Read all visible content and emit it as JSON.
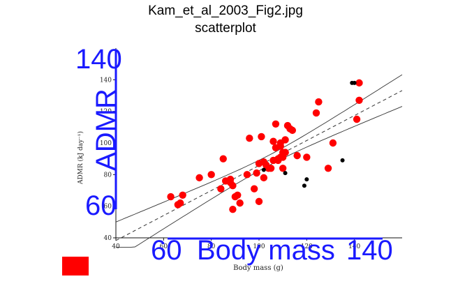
{
  "title": "Kam_et_al_2003_Fig2.jpg",
  "subtitle": "scatterplot",
  "colors": {
    "overlay": "#1a1aff",
    "marker_red": "#ff0000",
    "marker_black": "#000000",
    "swatch": "#ff0000",
    "axes": "#111111"
  },
  "chart_data": {
    "type": "scatter",
    "xlabel": "Body mass (g)",
    "ylabel": "ADMR (kJ day⁻¹)",
    "xlim": [
      40,
      160
    ],
    "ylim": [
      40,
      160
    ],
    "x_ticks": [
      "40",
      "60",
      "80",
      "100",
      "120",
      "140"
    ],
    "y_ticks": [
      "40",
      "60",
      "80",
      "100",
      "120",
      "140"
    ],
    "overlay": {
      "xlabel": "Body mass",
      "ylabel": "ADMR",
      "x_min": "60",
      "x_max": "140",
      "y_min": "60",
      "y_max": "140"
    },
    "fit_lines": [
      "regression",
      "95% confidence band"
    ],
    "series": [
      {
        "color": "#ff0000",
        "x": [
          63,
          66,
          67,
          68,
          75,
          80,
          84,
          85,
          86,
          88,
          88,
          89,
          89,
          90,
          91,
          92,
          95,
          96,
          98,
          99,
          100,
          100,
          101,
          102,
          102,
          103,
          104,
          105,
          106,
          106,
          107,
          107,
          108,
          108,
          109,
          109,
          109,
          110,
          110,
          110,
          111,
          111,
          111,
          112,
          113,
          114,
          116,
          120,
          124,
          125,
          129,
          131,
          141,
          142,
          142
        ],
        "y": [
          66,
          61,
          62,
          67,
          78,
          80,
          71,
          90,
          76,
          77,
          75,
          58,
          73,
          66,
          67,
          62,
          80,
          103,
          71,
          81,
          63,
          87,
          104,
          78,
          88,
          86,
          84,
          84,
          101,
          89,
          97,
          112,
          90,
          89,
          100,
          91,
          98,
          91,
          94,
          84,
          94,
          102,
          94,
          111,
          109,
          108,
          92,
          91,
          119,
          126,
          84,
          100,
          115,
          127,
          138
        ]
      },
      {
        "color": "#000000",
        "x": [
          102,
          111,
          119,
          120,
          135,
          139,
          140
        ],
        "y": [
          83,
          81,
          73,
          77,
          89,
          138,
          138
        ]
      }
    ]
  }
}
